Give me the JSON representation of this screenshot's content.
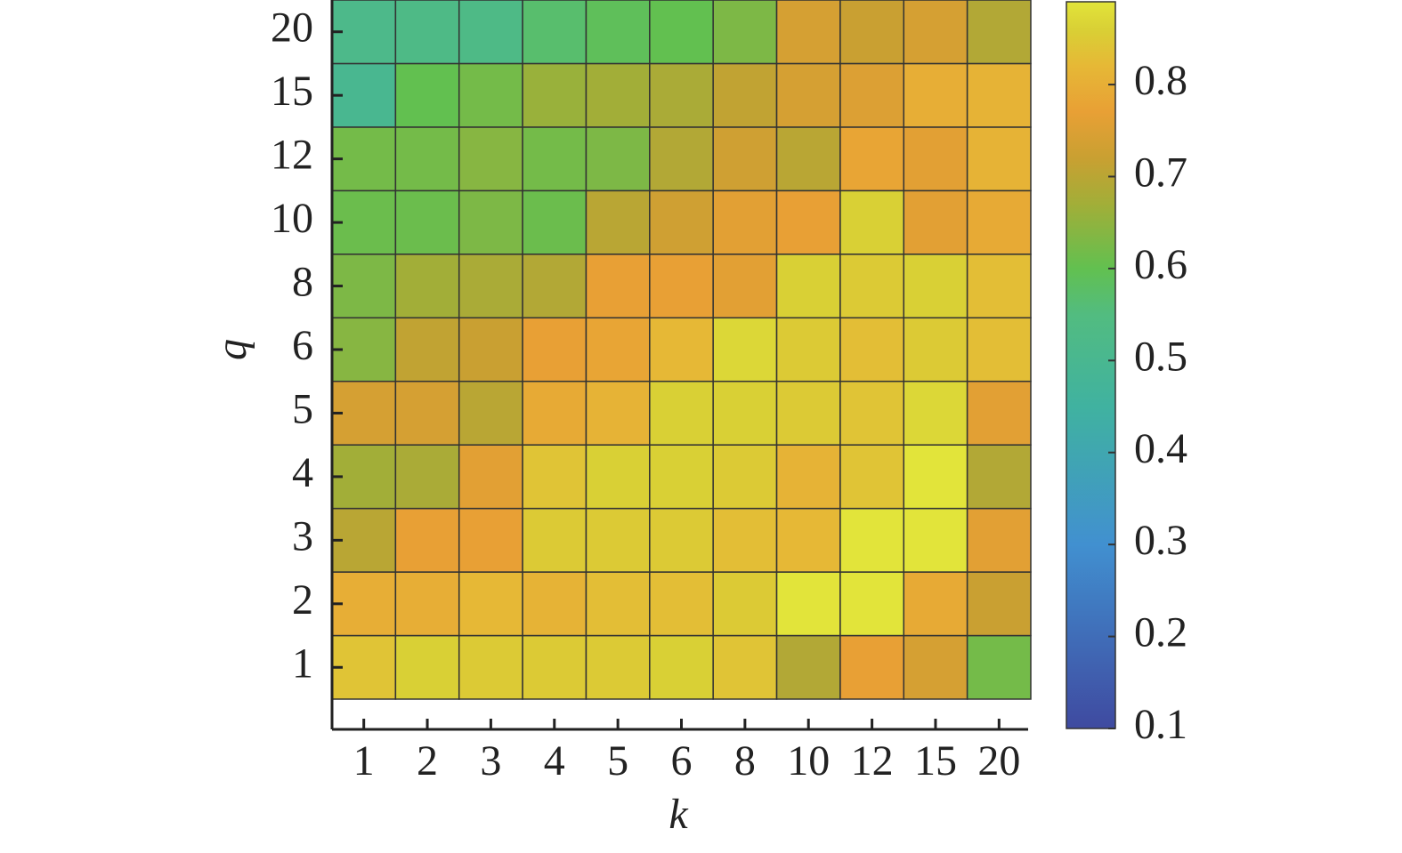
{
  "chart_data": {
    "type": "heatmap",
    "x_label": "k",
    "y_label": "q",
    "x_categories": [
      "1",
      "2",
      "3",
      "4",
      "5",
      "6",
      "8",
      "10",
      "12",
      "15",
      "20"
    ],
    "y_categories": [
      "1",
      "2",
      "3",
      "4",
      "5",
      "6",
      "8",
      "10",
      "12",
      "15",
      "20"
    ],
    "z": [
      [
        0.84,
        0.86,
        0.85,
        0.85,
        0.85,
        0.86,
        0.84,
        0.69,
        0.77,
        0.74,
        0.62
      ],
      [
        0.8,
        0.8,
        0.82,
        0.81,
        0.83,
        0.83,
        0.85,
        0.89,
        0.89,
        0.79,
        0.72
      ],
      [
        0.7,
        0.77,
        0.77,
        0.85,
        0.85,
        0.85,
        0.83,
        0.82,
        0.89,
        0.89,
        0.76
      ],
      [
        0.67,
        0.68,
        0.76,
        0.84,
        0.86,
        0.86,
        0.85,
        0.81,
        0.84,
        0.89,
        0.69
      ],
      [
        0.74,
        0.74,
        0.7,
        0.79,
        0.81,
        0.86,
        0.86,
        0.85,
        0.84,
        0.87,
        0.76
      ],
      [
        0.64,
        0.71,
        0.72,
        0.77,
        0.78,
        0.82,
        0.87,
        0.85,
        0.83,
        0.85,
        0.83
      ],
      [
        0.63,
        0.67,
        0.68,
        0.69,
        0.77,
        0.77,
        0.76,
        0.86,
        0.85,
        0.86,
        0.83
      ],
      [
        0.61,
        0.61,
        0.63,
        0.61,
        0.7,
        0.73,
        0.76,
        0.77,
        0.86,
        0.76,
        0.79
      ],
      [
        0.62,
        0.62,
        0.64,
        0.62,
        0.63,
        0.69,
        0.73,
        0.7,
        0.78,
        0.76,
        0.81
      ],
      [
        0.5,
        0.6,
        0.62,
        0.66,
        0.67,
        0.68,
        0.71,
        0.74,
        0.75,
        0.8,
        0.81
      ],
      [
        0.52,
        0.53,
        0.53,
        0.57,
        0.59,
        0.6,
        0.63,
        0.74,
        0.72,
        0.74,
        0.69
      ]
    ],
    "clim": [
      0.1,
      0.89
    ],
    "cticks": [
      0.1,
      0.2,
      0.3,
      0.4,
      0.5,
      0.6,
      0.7,
      0.8
    ],
    "colorscale": [
      {
        "value": 0.1,
        "color": "#3f4aa0"
      },
      {
        "value": 0.3,
        "color": "#4190d0"
      },
      {
        "value": 0.45,
        "color": "#40b2a0"
      },
      {
        "value": 0.55,
        "color": "#52bc80"
      },
      {
        "value": 0.6,
        "color": "#62c050"
      },
      {
        "value": 0.67,
        "color": "#a2ae38"
      },
      {
        "value": 0.72,
        "color": "#c9a032"
      },
      {
        "value": 0.77,
        "color": "#e8a035"
      },
      {
        "value": 0.82,
        "color": "#e6b836"
      },
      {
        "value": 0.86,
        "color": "#d9d035"
      },
      {
        "value": 0.89,
        "color": "#e2e43a"
      }
    ]
  }
}
